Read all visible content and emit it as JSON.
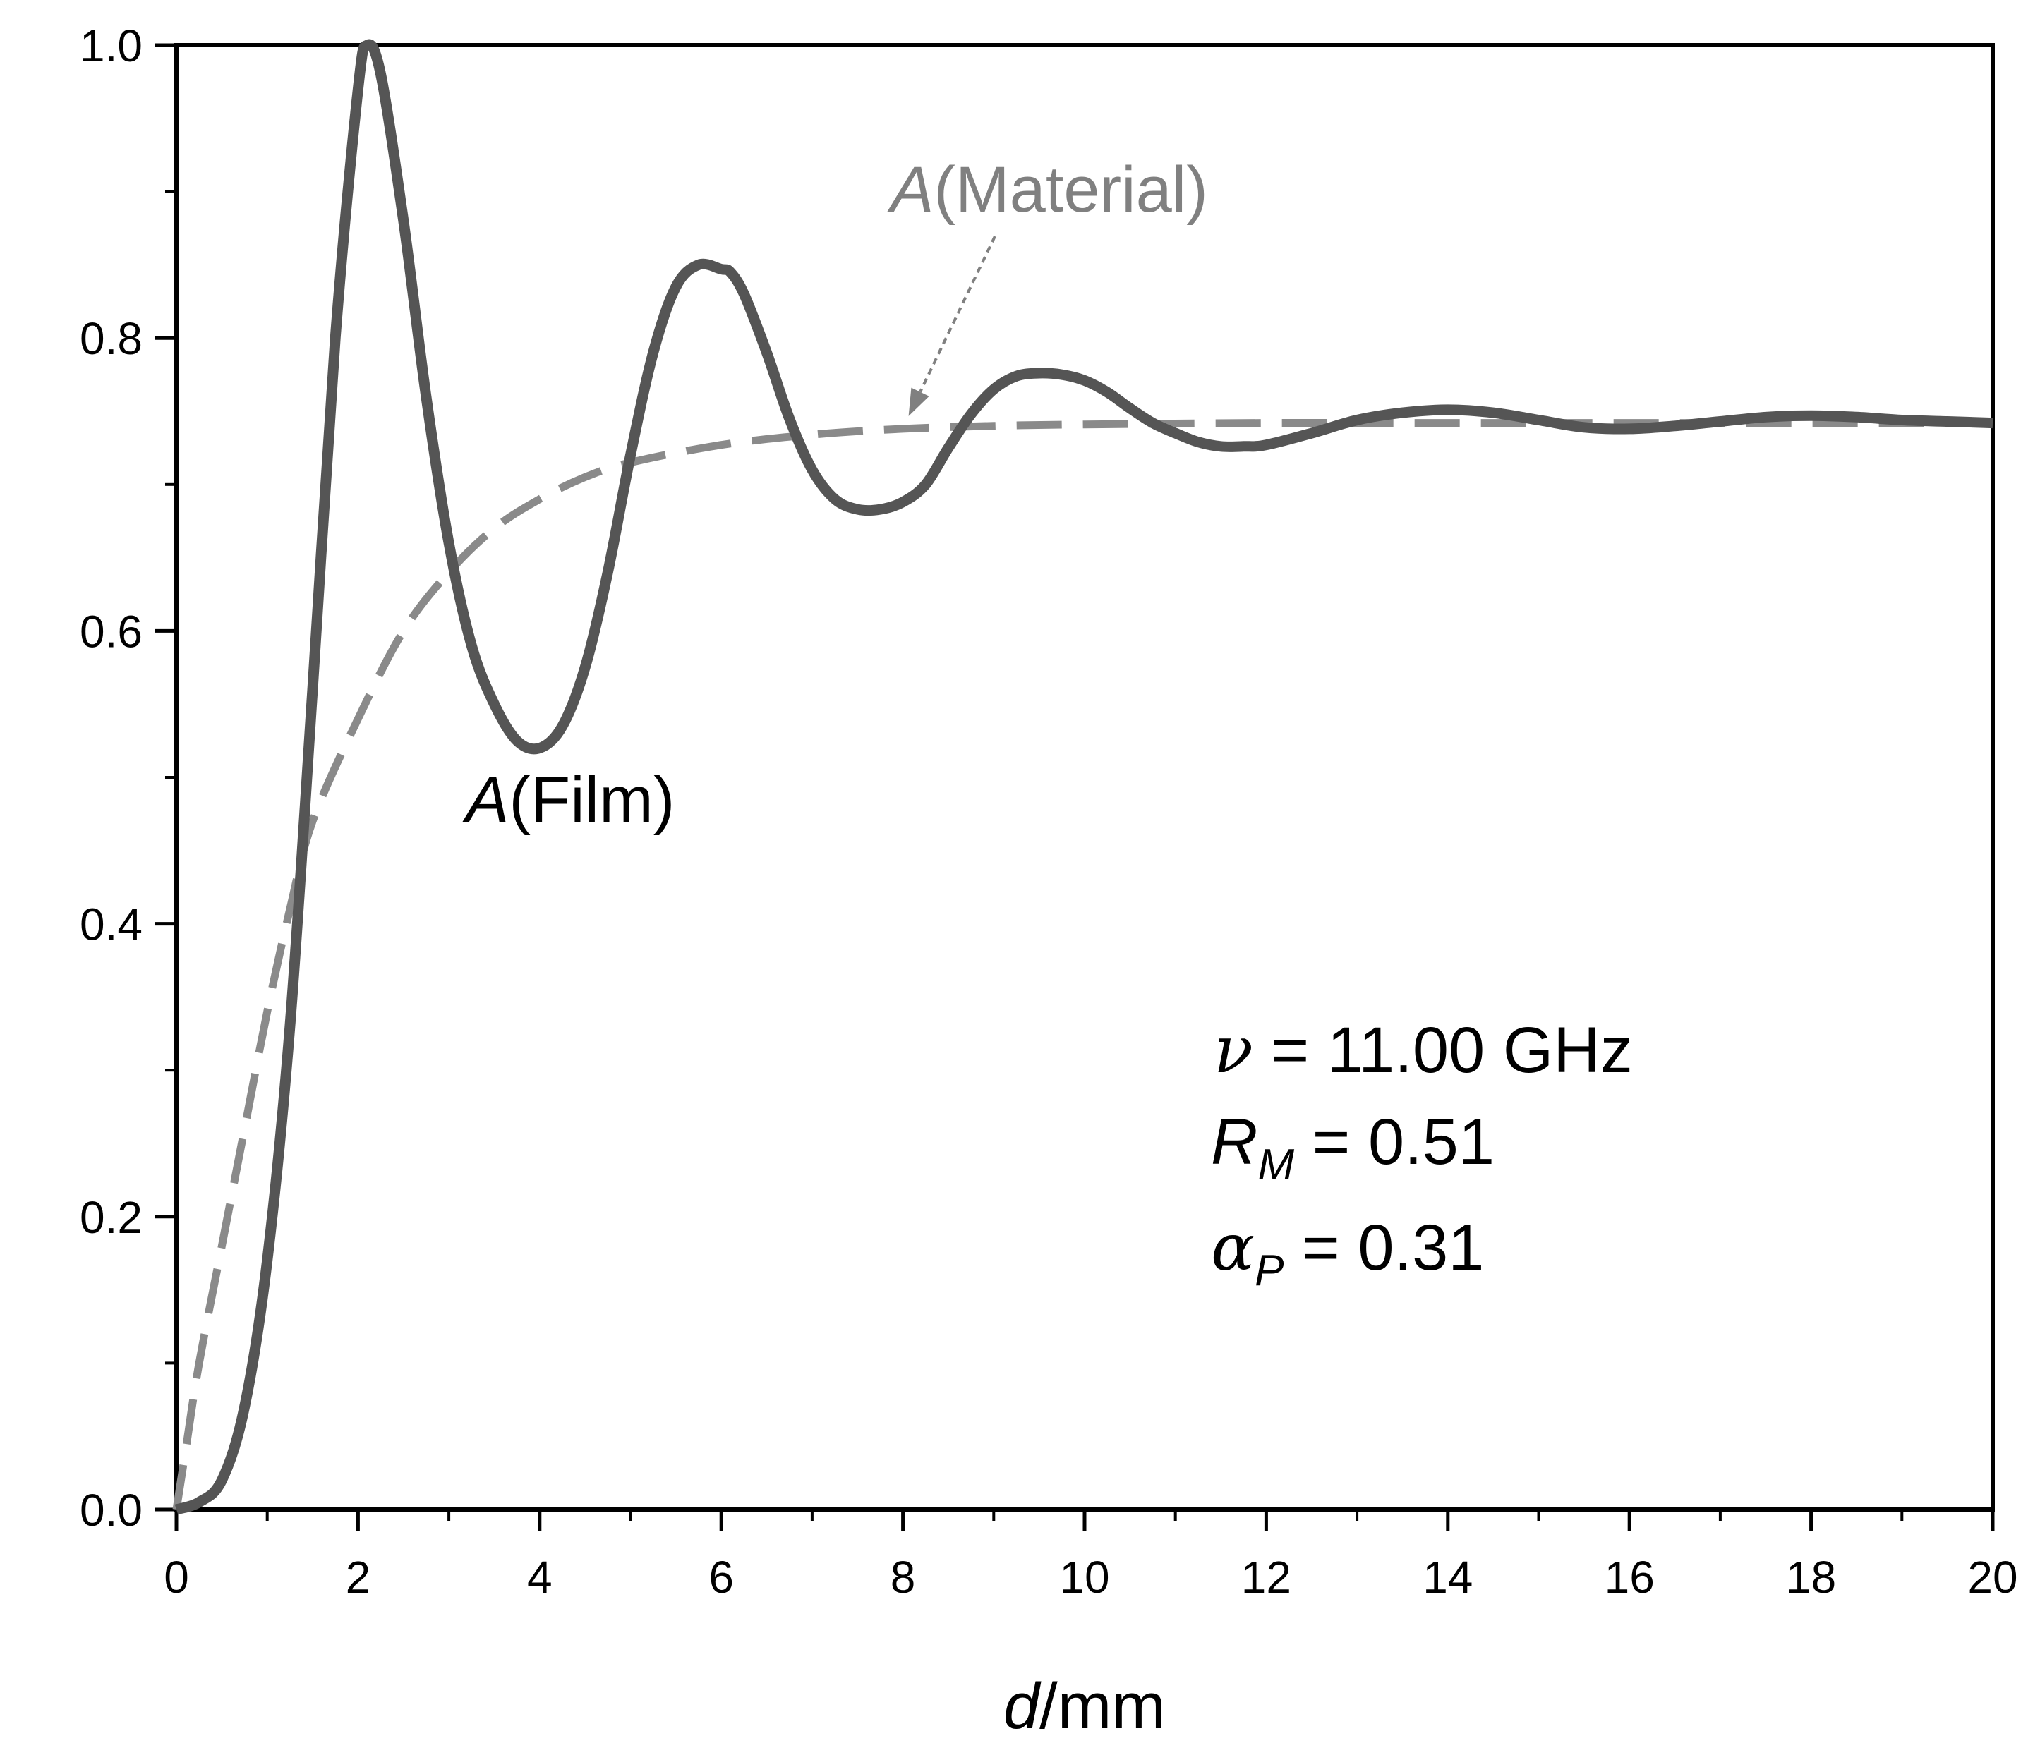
{
  "chart_data": {
    "type": "line",
    "xlabel": {
      "var": "d",
      "unit": "/mm"
    },
    "ylabel": "",
    "xlim": [
      0,
      20
    ],
    "ylim": [
      0,
      1.0
    ],
    "x_ticks": [
      "0",
      "2",
      "4",
      "6",
      "8",
      "10",
      "12",
      "14",
      "16",
      "18",
      "20"
    ],
    "y_ticks": [
      "0.0",
      "0.2",
      "0.4",
      "0.6",
      "0.8",
      "1.0"
    ],
    "grid": false,
    "colors": {
      "film": "#555555",
      "material": "#8a8a8a",
      "arrow": "#808080"
    },
    "series": [
      {
        "name": "A(Film)",
        "style": "solid",
        "x": [
          0,
          0.25,
          0.5,
          0.75,
          1.0,
          1.25,
          1.5,
          1.75,
          2.0,
          2.1,
          2.25,
          2.5,
          2.75,
          3.0,
          3.25,
          3.5,
          3.75,
          4.0,
          4.25,
          4.5,
          4.75,
          5.0,
          5.25,
          5.5,
          5.75,
          6.0,
          6.1,
          6.25,
          6.5,
          6.75,
          7.0,
          7.25,
          7.5,
          7.75,
          8.0,
          8.25,
          8.5,
          8.75,
          9.0,
          9.25,
          9.5,
          9.75,
          10.0,
          10.25,
          10.5,
          10.75,
          11.0,
          11.25,
          11.5,
          11.75,
          12.0,
          12.5,
          13.0,
          13.5,
          14.0,
          14.5,
          15.0,
          15.5,
          16.0,
          16.5,
          17.0,
          17.5,
          18.0,
          18.5,
          19.0,
          19.5,
          20.0
        ],
        "y": [
          0.0,
          0.005,
          0.02,
          0.07,
          0.17,
          0.33,
          0.56,
          0.8,
          0.97,
          1.0,
          0.98,
          0.88,
          0.76,
          0.66,
          0.59,
          0.55,
          0.525,
          0.52,
          0.535,
          0.575,
          0.64,
          0.72,
          0.79,
          0.835,
          0.85,
          0.847,
          0.845,
          0.83,
          0.79,
          0.745,
          0.71,
          0.69,
          0.683,
          0.683,
          0.688,
          0.7,
          0.725,
          0.748,
          0.765,
          0.774,
          0.776,
          0.775,
          0.771,
          0.763,
          0.752,
          0.742,
          0.735,
          0.729,
          0.726,
          0.726,
          0.727,
          0.735,
          0.744,
          0.749,
          0.751,
          0.749,
          0.744,
          0.739,
          0.738,
          0.74,
          0.743,
          0.746,
          0.747,
          0.746,
          0.744,
          0.743,
          0.742
        ]
      },
      {
        "name": "A(Material)",
        "style": "dashed",
        "x": [
          0,
          0.1,
          0.25,
          0.5,
          0.75,
          1.0,
          1.25,
          1.5,
          2.0,
          2.5,
          3.0,
          3.5,
          4.0,
          4.5,
          5.0,
          6.0,
          7.0,
          8.0,
          9.0,
          10.0,
          12.0,
          14.0,
          16.0,
          18.0,
          20.0
        ],
        "y": [
          0.0,
          0.04,
          0.1,
          0.18,
          0.26,
          0.34,
          0.41,
          0.47,
          0.54,
          0.6,
          0.64,
          0.67,
          0.69,
          0.705,
          0.715,
          0.727,
          0.734,
          0.738,
          0.74,
          0.741,
          0.742,
          0.742,
          0.742,
          0.742,
          0.742
        ]
      }
    ],
    "annotations": {
      "film_label": {
        "var": "A",
        "text": "(Film)"
      },
      "material_label": {
        "var": "A",
        "text": "(Material)"
      },
      "params": {
        "nu_symbol": "ν",
        "nu_text": " = 11.00 GHz",
        "rm_symbol": "R",
        "rm_sub": "M",
        "rm_text": " = 0.51",
        "alpha_symbol": "α",
        "alpha_sub": "P",
        "alpha_text": "  = 0.31"
      }
    }
  }
}
